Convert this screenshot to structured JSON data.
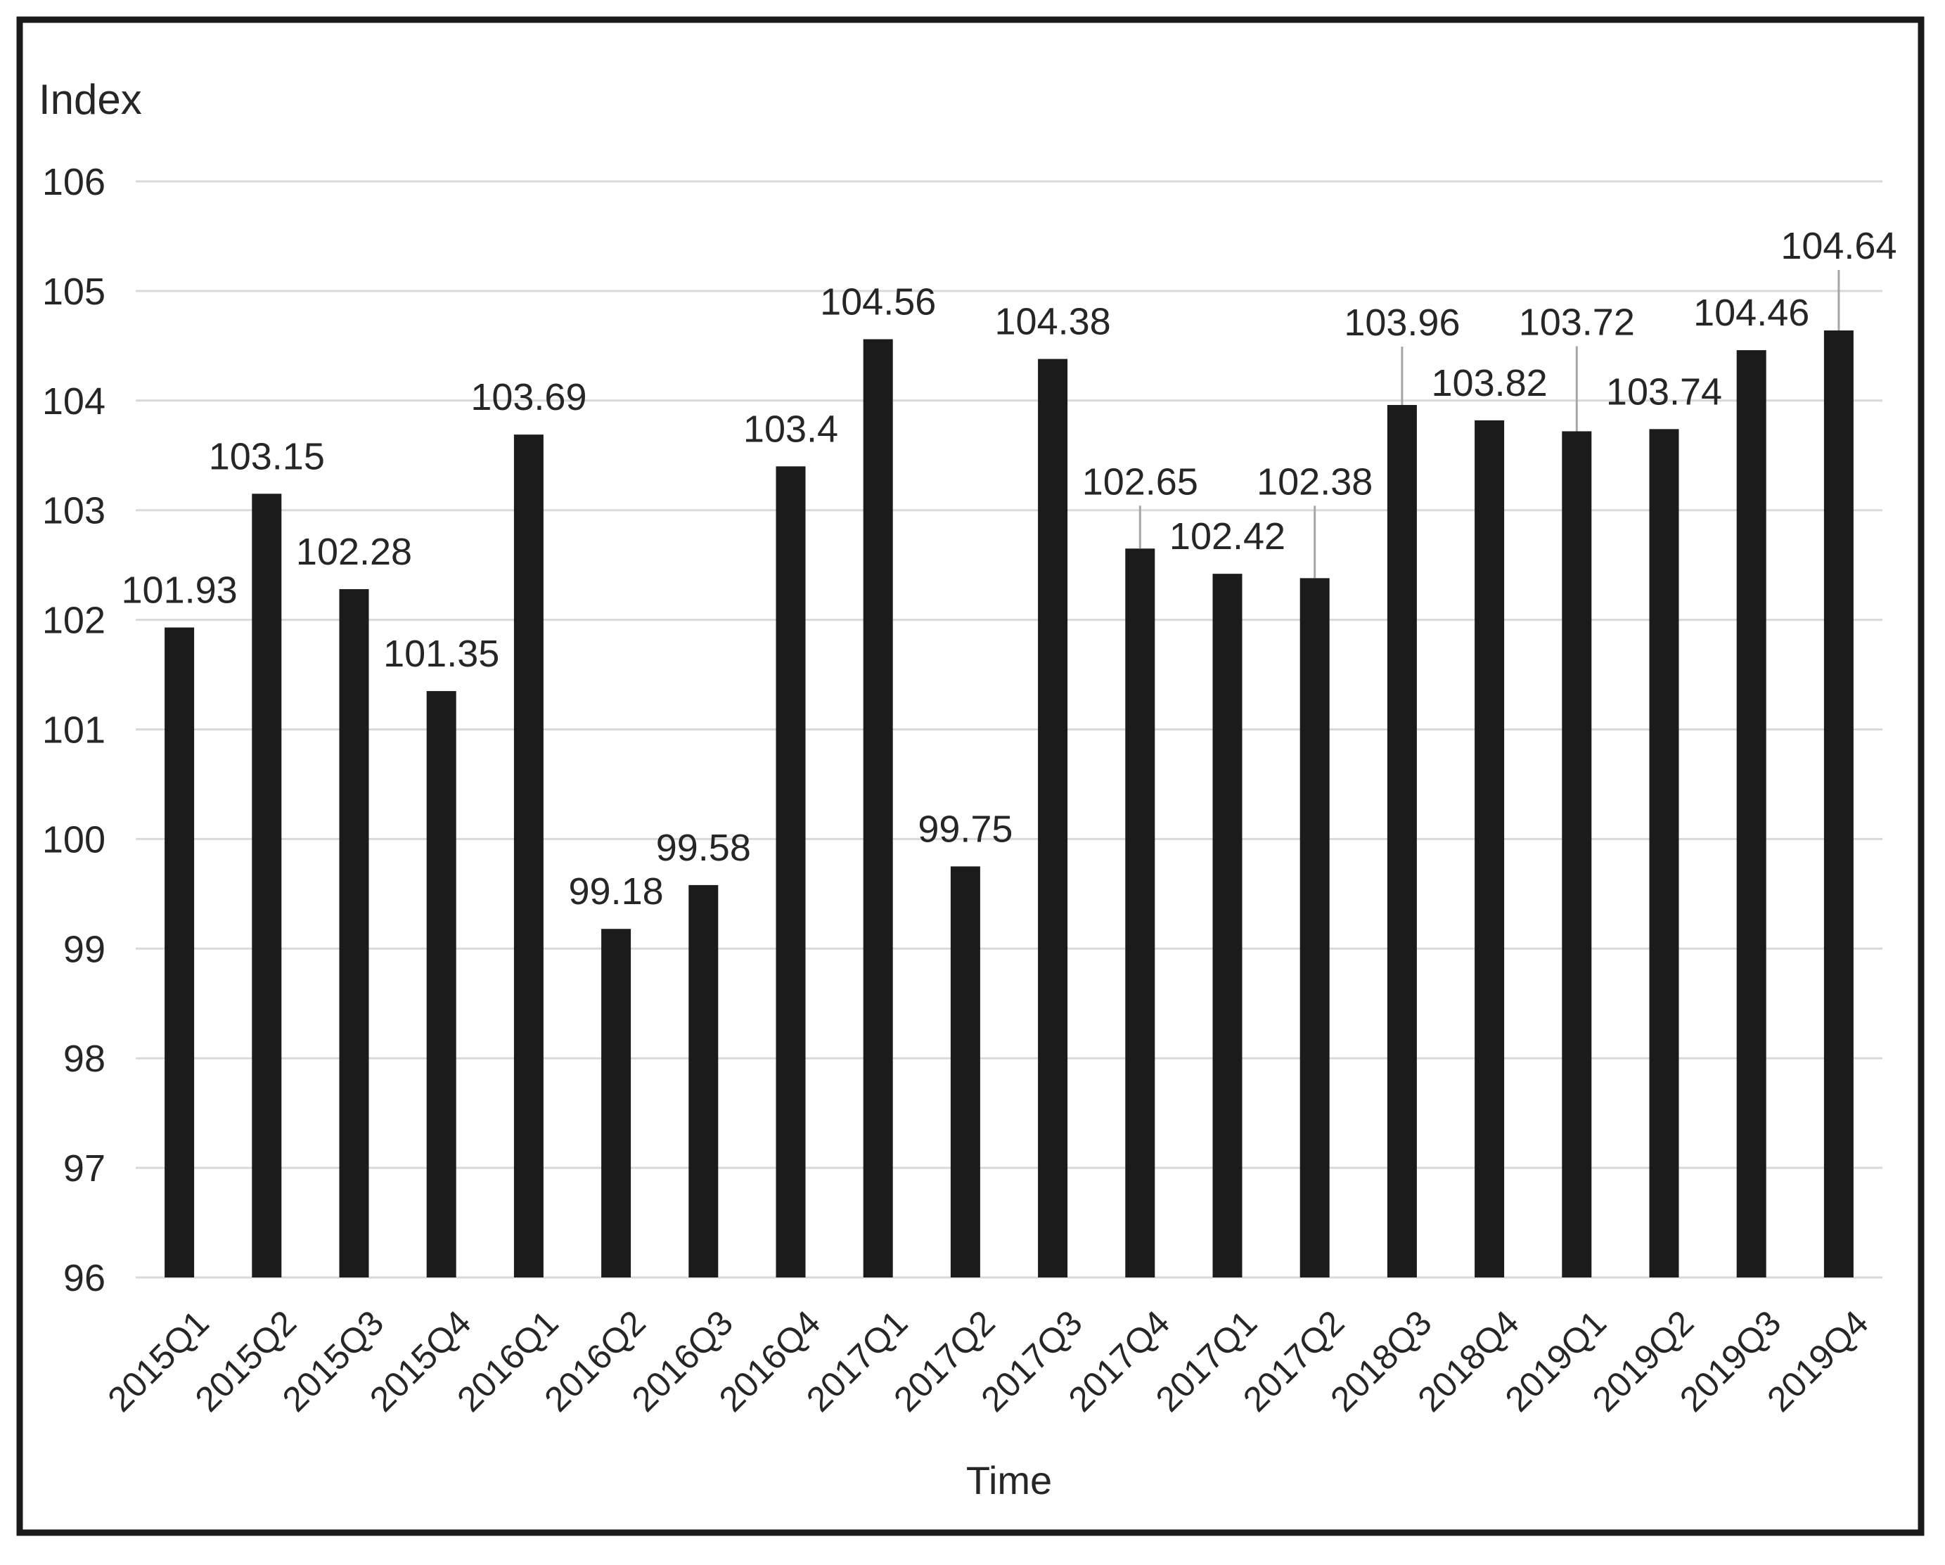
{
  "figure": {
    "title": "Index",
    "x_axis_title": "Time"
  },
  "chart_data": {
    "type": "bar",
    "title": "Index",
    "xlabel": "Time",
    "ylabel": "Index",
    "categories": [
      "2015Q1",
      "2015Q2",
      "2015Q3",
      "2015Q4",
      "2016Q1",
      "2016Q2",
      "2016Q3",
      "2016Q4",
      "2017Q1",
      "2017Q2",
      "2017Q3",
      "2017Q4",
      "2017Q1",
      "2017Q2",
      "2018Q3",
      "2018Q4",
      "2019Q1",
      "2019Q2",
      "2019Q3",
      "2019Q4"
    ],
    "values": [
      101.93,
      103.15,
      102.28,
      101.35,
      103.69,
      99.18,
      99.58,
      103.4,
      104.56,
      99.75,
      104.38,
      102.65,
      102.42,
      102.38,
      103.96,
      103.82,
      103.72,
      103.74,
      104.46,
      104.64
    ],
    "value_labels": [
      "101.93",
      "103.15",
      "102.28",
      "101.35",
      "103.69",
      "99.18",
      "99.58",
      "103.4",
      "104.56",
      "99.75",
      "104.38",
      "102.65",
      "102.42",
      "102.38",
      "103.96",
      "103.82",
      "103.72",
      "103.74",
      "104.46",
      "104.64"
    ],
    "yticks": [
      96,
      97,
      98,
      99,
      100,
      101,
      102,
      103,
      104,
      105,
      106
    ],
    "ylim": [
      96,
      106
    ],
    "grid": true,
    "legend": "none",
    "callout_indices": [
      11,
      13,
      14,
      16,
      19
    ],
    "colors": {
      "bar": "#1b1b1b",
      "gridline": "#d9d9d9",
      "leader_line": "#a6a6a6",
      "text": "#262626",
      "frame": "#1a1a1a",
      "background": "#ffffff"
    }
  }
}
